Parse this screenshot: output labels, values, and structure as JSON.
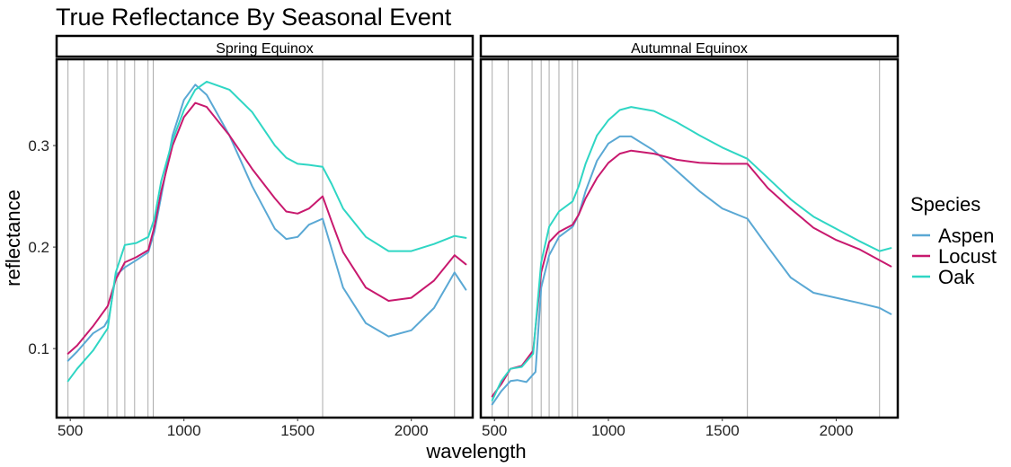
{
  "chart_data": {
    "type": "line",
    "title": "True Reflectance By Seasonal Event",
    "xlabel": "wavelength",
    "ylabel": "reflectance",
    "xlim": [
      440,
      2270
    ],
    "ylim": [
      0.032,
      0.385
    ],
    "x_ticks": [
      500,
      1000,
      1500,
      2000
    ],
    "x_tick_labels": [
      "500",
      "1000",
      "1500",
      "2000"
    ],
    "y_ticks": [
      0.1,
      0.2,
      0.3
    ],
    "y_tick_labels": [
      "0.1",
      "0.2",
      "0.3"
    ],
    "vertical_reference_lines": [
      490,
      560,
      665,
      705,
      740,
      783,
      842,
      865,
      1610,
      2190
    ],
    "grid": false,
    "legend": {
      "title": "Species",
      "position": "right",
      "entries": [
        "Aspen",
        "Locust",
        "Oak"
      ]
    },
    "colors": {
      "Aspen": "#5aa8d4",
      "Locust": "#c8196e",
      "Oak": "#2fd6c4"
    },
    "panels": [
      {
        "label": "Spring Equinox",
        "series": [
          {
            "name": "Aspen",
            "points": [
              [
                490,
                0.088
              ],
              [
                530,
                0.097
              ],
              [
                600,
                0.115
              ],
              [
                650,
                0.122
              ],
              [
                670,
                0.13
              ],
              [
                700,
                0.172
              ],
              [
                740,
                0.18
              ],
              [
                790,
                0.187
              ],
              [
                843,
                0.195
              ],
              [
                870,
                0.215
              ],
              [
                900,
                0.25
              ],
              [
                950,
                0.31
              ],
              [
                1000,
                0.345
              ],
              [
                1050,
                0.36
              ],
              [
                1100,
                0.35
              ],
              [
                1200,
                0.31
              ],
              [
                1300,
                0.26
              ],
              [
                1400,
                0.218
              ],
              [
                1450,
                0.208
              ],
              [
                1500,
                0.21
              ],
              [
                1550,
                0.222
              ],
              [
                1610,
                0.228
              ],
              [
                1650,
                0.198
              ],
              [
                1700,
                0.16
              ],
              [
                1800,
                0.125
              ],
              [
                1900,
                0.112
              ],
              [
                2000,
                0.118
              ],
              [
                2100,
                0.14
              ],
              [
                2190,
                0.175
              ],
              [
                2240,
                0.158
              ]
            ]
          },
          {
            "name": "Locust",
            "points": [
              [
                490,
                0.095
              ],
              [
                530,
                0.103
              ],
              [
                600,
                0.122
              ],
              [
                665,
                0.142
              ],
              [
                700,
                0.168
              ],
              [
                740,
                0.185
              ],
              [
                790,
                0.19
              ],
              [
                843,
                0.197
              ],
              [
                870,
                0.22
              ],
              [
                900,
                0.255
              ],
              [
                950,
                0.3
              ],
              [
                1000,
                0.328
              ],
              [
                1050,
                0.342
              ],
              [
                1100,
                0.338
              ],
              [
                1200,
                0.31
              ],
              [
                1300,
                0.277
              ],
              [
                1400,
                0.248
              ],
              [
                1450,
                0.235
              ],
              [
                1500,
                0.233
              ],
              [
                1550,
                0.238
              ],
              [
                1610,
                0.25
              ],
              [
                1650,
                0.225
              ],
              [
                1700,
                0.195
              ],
              [
                1800,
                0.16
              ],
              [
                1900,
                0.147
              ],
              [
                2000,
                0.15
              ],
              [
                2100,
                0.167
              ],
              [
                2190,
                0.192
              ],
              [
                2240,
                0.183
              ]
            ]
          },
          {
            "name": "Oak",
            "points": [
              [
                490,
                0.068
              ],
              [
                530,
                0.08
              ],
              [
                600,
                0.098
              ],
              [
                665,
                0.12
              ],
              [
                700,
                0.175
              ],
              [
                740,
                0.202
              ],
              [
                790,
                0.204
              ],
              [
                843,
                0.21
              ],
              [
                870,
                0.228
              ],
              [
                900,
                0.265
              ],
              [
                950,
                0.305
              ],
              [
                1000,
                0.335
              ],
              [
                1050,
                0.355
              ],
              [
                1100,
                0.363
              ],
              [
                1200,
                0.355
              ],
              [
                1300,
                0.333
              ],
              [
                1400,
                0.3
              ],
              [
                1450,
                0.288
              ],
              [
                1500,
                0.282
              ],
              [
                1550,
                0.281
              ],
              [
                1610,
                0.279
              ],
              [
                1650,
                0.262
              ],
              [
                1700,
                0.238
              ],
              [
                1800,
                0.21
              ],
              [
                1900,
                0.196
              ],
              [
                2000,
                0.196
              ],
              [
                2100,
                0.203
              ],
              [
                2190,
                0.211
              ],
              [
                2240,
                0.209
              ]
            ]
          }
        ]
      },
      {
        "label": "Autumnal Equinox",
        "series": [
          {
            "name": "Aspen",
            "points": [
              [
                490,
                0.045
              ],
              [
                530,
                0.058
              ],
              [
                570,
                0.068
              ],
              [
                600,
                0.069
              ],
              [
                640,
                0.067
              ],
              [
                680,
                0.077
              ],
              [
                705,
                0.16
              ],
              [
                740,
                0.192
              ],
              [
                783,
                0.21
              ],
              [
                843,
                0.22
              ],
              [
                870,
                0.232
              ],
              [
                900,
                0.255
              ],
              [
                950,
                0.285
              ],
              [
                1000,
                0.302
              ],
              [
                1050,
                0.309
              ],
              [
                1100,
                0.309
              ],
              [
                1200,
                0.295
              ],
              [
                1300,
                0.275
              ],
              [
                1400,
                0.255
              ],
              [
                1500,
                0.238
              ],
              [
                1610,
                0.228
              ],
              [
                1700,
                0.2
              ],
              [
                1800,
                0.17
              ],
              [
                1900,
                0.155
              ],
              [
                2000,
                0.15
              ],
              [
                2100,
                0.145
              ],
              [
                2190,
                0.14
              ],
              [
                2240,
                0.134
              ]
            ]
          },
          {
            "name": "Locust",
            "points": [
              [
                490,
                0.053
              ],
              [
                530,
                0.065
              ],
              [
                570,
                0.08
              ],
              [
                620,
                0.083
              ],
              [
                670,
                0.098
              ],
              [
                705,
                0.175
              ],
              [
                740,
                0.205
              ],
              [
                783,
                0.215
              ],
              [
                843,
                0.222
              ],
              [
                870,
                0.232
              ],
              [
                900,
                0.248
              ],
              [
                950,
                0.268
              ],
              [
                1000,
                0.283
              ],
              [
                1050,
                0.292
              ],
              [
                1100,
                0.295
              ],
              [
                1200,
                0.292
              ],
              [
                1300,
                0.286
              ],
              [
                1400,
                0.283
              ],
              [
                1500,
                0.282
              ],
              [
                1610,
                0.282
              ],
              [
                1700,
                0.258
              ],
              [
                1800,
                0.238
              ],
              [
                1900,
                0.219
              ],
              [
                2000,
                0.207
              ],
              [
                2100,
                0.198
              ],
              [
                2190,
                0.187
              ],
              [
                2240,
                0.181
              ]
            ]
          },
          {
            "name": "Oak",
            "points": [
              [
                490,
                0.049
              ],
              [
                530,
                0.068
              ],
              [
                570,
                0.08
              ],
              [
                620,
                0.082
              ],
              [
                670,
                0.095
              ],
              [
                705,
                0.185
              ],
              [
                740,
                0.22
              ],
              [
                783,
                0.235
              ],
              [
                843,
                0.245
              ],
              [
                870,
                0.26
              ],
              [
                900,
                0.282
              ],
              [
                950,
                0.31
              ],
              [
                1000,
                0.325
              ],
              [
                1050,
                0.335
              ],
              [
                1100,
                0.338
              ],
              [
                1200,
                0.334
              ],
              [
                1300,
                0.323
              ],
              [
                1400,
                0.31
              ],
              [
                1500,
                0.298
              ],
              [
                1610,
                0.287
              ],
              [
                1700,
                0.268
              ],
              [
                1800,
                0.247
              ],
              [
                1900,
                0.23
              ],
              [
                2000,
                0.218
              ],
              [
                2100,
                0.206
              ],
              [
                2190,
                0.196
              ],
              [
                2240,
                0.199
              ]
            ]
          }
        ]
      }
    ]
  }
}
